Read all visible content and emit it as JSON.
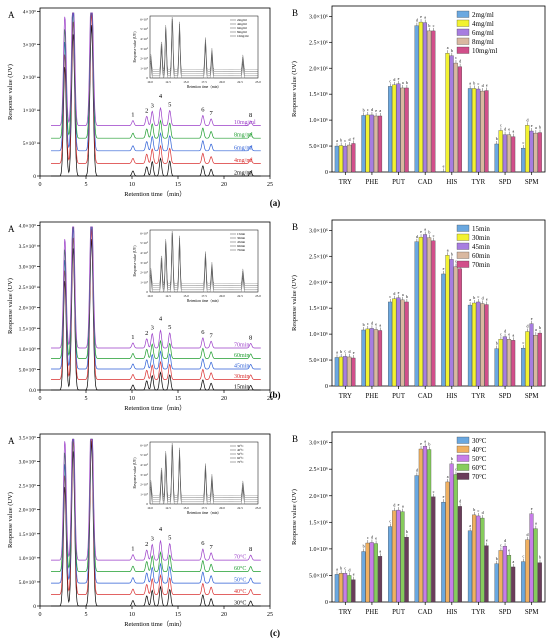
{
  "panel_rows": [
    {
      "row_label": "(a)",
      "left": {
        "panel_letter": "A",
        "ylabel": "Response value (UV)",
        "xlabel": "Retention time（min）",
        "yticks": [
          "0",
          "5×10⁵",
          "1×10⁶",
          "2×10⁶",
          "3×10⁶",
          "4×10⁶"
        ],
        "xticks": [
          "0",
          "5",
          "10",
          "15",
          "20",
          "25"
        ],
        "trace_labels": [
          "10mg/ml",
          "8mg/ml",
          "6mg/ml",
          "4mg/ml",
          "2mg/ml"
        ],
        "peak_labels": [
          "1",
          "2",
          "3",
          "4",
          "5",
          "6",
          "7",
          "8"
        ],
        "inset_legend": [
          "2mg/ml",
          "4mg/ml",
          "6mg/ml",
          "8mg/ml",
          "10mg/ml"
        ],
        "inset_ylabel": "Response value (UV)",
        "inset_xlabel": "Retention time（min）",
        "inset_yticks": [
          "0",
          "1×10⁵",
          "2×10⁵",
          "3×10⁵",
          "4×10⁵",
          "5×10⁵",
          "6×10⁵"
        ],
        "inset_xticks": [
          "10.0",
          "12.5",
          "15.0",
          "17.5",
          "20.0",
          "22.5",
          "25.0"
        ]
      },
      "right": {
        "panel_letter": "B",
        "ylabel": "Response value (UV)",
        "yticks": [
          "0",
          "5.0×10⁵",
          "1.0×10⁶",
          "1.5×10⁶",
          "2.0×10⁶",
          "2.5×10⁶",
          "3.0×10⁶"
        ],
        "legend": [
          "2mg/ml",
          "4mg/ml",
          "6mg/ml",
          "8mg/ml",
          "10mg/ml"
        ]
      }
    },
    {
      "row_label": "(b)",
      "left": {
        "panel_letter": "A",
        "ylabel": "Response value (UV)",
        "xlabel": "Retention time（min）",
        "yticks": [
          "0.0",
          "5.0×10⁵",
          "1.0×10⁶",
          "1.5×10⁶",
          "2.0×10⁶",
          "2.5×10⁶",
          "3.0×10⁶",
          "3.5×10⁶",
          "4.0×10⁶"
        ],
        "xticks": [
          "0",
          "5",
          "10",
          "15",
          "20",
          "25"
        ],
        "trace_labels": [
          "70min",
          "60min",
          "45min",
          "30min",
          "15min"
        ],
        "peak_labels": [
          "1",
          "2",
          "3",
          "4",
          "5",
          "6",
          "7",
          "8"
        ],
        "inset_legend": [
          "15min",
          "30min",
          "45min",
          "60min",
          "70min"
        ],
        "inset_ylabel": "Response value (UV)",
        "inset_xlabel": "Retention time（min）",
        "inset_yticks": [
          "0",
          "1×10⁵",
          "2×10⁵",
          "3×10⁵",
          "4×10⁵",
          "5×10⁵",
          "6×10⁵"
        ],
        "inset_xticks": [
          "10.0",
          "12.5",
          "15.0",
          "17.5",
          "20.0",
          "22.5",
          "25.0"
        ]
      },
      "right": {
        "panel_letter": "B",
        "ylabel": "Response value (UV)",
        "yticks": [
          "0",
          "5.0×10⁵",
          "1.0×10⁶",
          "1.5×10⁶",
          "2.0×10⁶",
          "2.5×10⁶",
          "3.0×10⁶"
        ],
        "legend": [
          "15min",
          "30min",
          "45min",
          "60min",
          "70min"
        ]
      }
    },
    {
      "row_label": "(c)",
      "left": {
        "panel_letter": "A",
        "ylabel": "Response value (UV)",
        "xlabel": "Retention time（min）",
        "yticks": [
          "0",
          "5.0×10⁵",
          "1.0×10⁶",
          "1.5×10⁶",
          "2.0×10⁶",
          "2.5×10⁶",
          "3.0×10⁶",
          "3.5×10⁶"
        ],
        "xticks": [
          "0",
          "5",
          "10",
          "15",
          "20",
          "25"
        ],
        "trace_labels": [
          "70°C",
          "60°C",
          "50°C",
          "40°C",
          "30°C"
        ],
        "peak_labels": [
          "1",
          "2",
          "3",
          "4",
          "5",
          "6",
          "7",
          "8"
        ],
        "inset_legend": [
          "30°C",
          "40°C",
          "50°C",
          "60°C",
          "70°C"
        ],
        "inset_ylabel": "Response value (UV)",
        "inset_xlabel": "Retention time（min）",
        "inset_yticks": [
          "0",
          "1×10⁵",
          "2×10⁵",
          "3×10⁵",
          "4×10⁵",
          "5×10⁵",
          "6×10⁵"
        ],
        "inset_xticks": [
          "10.0",
          "12.5",
          "15.0",
          "17.5",
          "20.0",
          "22.5",
          "25.0"
        ]
      },
      "right": {
        "panel_letter": "B",
        "ylabel": "Response value (UV)",
        "yticks": [
          "0",
          "5.0×10⁵",
          "1.0×10⁶",
          "1.5×10⁶",
          "2.0×10⁶",
          "2.5×10⁶",
          "3.0×10⁶"
        ],
        "legend": [
          "30°C",
          "40°C",
          "50°C",
          "60°C",
          "70°C"
        ]
      }
    }
  ],
  "colors": {
    "series": [
      "#6aa8e0",
      "#f2f230",
      "#a77de0",
      "#d9b8a0",
      "#d14f8a"
    ],
    "series_c": [
      "#6aa8e0",
      "#f0b060",
      "#c77de8",
      "#86cc5c",
      "#6a3d5a"
    ],
    "traces": [
      "#000000",
      "#d93030",
      "#2d5fd6",
      "#1f9d2f",
      "#9b3fc8"
    ]
  },
  "chart_data": [
    {
      "type": "line",
      "title": "",
      "xlabel": "Retention time（min）",
      "ylabel": "Response value (UV)",
      "xlim": [
        0,
        25
      ],
      "ylim": [
        0,
        4000000
      ],
      "series": [
        {
          "name": "2mg/ml",
          "baseline": 0
        },
        {
          "name": "4mg/ml",
          "baseline": 300000
        },
        {
          "name": "6mg/ml",
          "baseline": 600000
        },
        {
          "name": "8mg/ml",
          "baseline": 900000
        },
        {
          "name": "10mg/ml",
          "baseline": 1200000
        }
      ],
      "peaks_x": [
        10.1,
        11.6,
        12.2,
        13.1,
        14.1,
        17.7,
        18.6,
        22.9
      ]
    },
    {
      "type": "bar",
      "title": "",
      "categories": [
        "TRY",
        "PHE",
        "PUT",
        "CAD",
        "HIS",
        "TYR",
        "SPD",
        "SPM"
      ],
      "ylabel": "Response value (UV)",
      "ylim": [
        0,
        3200000
      ],
      "series": [
        {
          "name": "2mg/ml",
          "values": [
            500000,
            1090000,
            1650000,
            2820000,
            10000,
            1610000,
            540000,
            460000
          ]
        },
        {
          "name": "4mg/ml",
          "values": [
            510000,
            1100000,
            1680000,
            2890000,
            2290000,
            1610000,
            800000,
            900000
          ]
        },
        {
          "name": "6mg/ml",
          "values": [
            500000,
            1100000,
            1700000,
            2880000,
            2240000,
            1600000,
            720000,
            790000
          ]
        },
        {
          "name": "8mg/ml",
          "values": [
            520000,
            1080000,
            1620000,
            2720000,
            2100000,
            1560000,
            720000,
            750000
          ]
        },
        {
          "name": "10mg/ml",
          "values": [
            550000,
            1080000,
            1620000,
            2720000,
            2030000,
            1570000,
            680000,
            760000
          ]
        }
      ]
    },
    {
      "type": "line",
      "title": "",
      "xlabel": "Retention time（min）",
      "ylabel": "Response value (UV)",
      "xlim": [
        0,
        25
      ],
      "ylim": [
        0,
        4000000
      ],
      "series": [
        {
          "name": "15min",
          "baseline": 0
        },
        {
          "name": "30min",
          "baseline": 250000
        },
        {
          "name": "45min",
          "baseline": 500000
        },
        {
          "name": "60min",
          "baseline": 750000
        },
        {
          "name": "70min",
          "baseline": 1000000
        }
      ],
      "peaks_x": [
        10.1,
        11.6,
        12.2,
        13.1,
        14.1,
        17.7,
        18.6,
        22.9
      ]
    },
    {
      "type": "bar",
      "title": "",
      "categories": [
        "TRY",
        "PHE",
        "PUT",
        "CAD",
        "HIS",
        "TYR",
        "SPD",
        "SPM"
      ],
      "ylabel": "Response value (UV)",
      "ylim": [
        0,
        3200000
      ],
      "series": [
        {
          "name": "15min",
          "values": [
            550000,
            1080000,
            1620000,
            2780000,
            2160000,
            1560000,
            720000,
            730000
          ]
        },
        {
          "name": "30min",
          "values": [
            560000,
            1100000,
            1680000,
            2870000,
            2520000,
            1600000,
            900000,
            1050000
          ]
        },
        {
          "name": "45min",
          "values": [
            570000,
            1110000,
            1700000,
            2920000,
            2440000,
            1620000,
            950000,
            1200000
          ]
        },
        {
          "name": "60min",
          "values": [
            560000,
            1090000,
            1660000,
            2860000,
            2300000,
            1590000,
            900000,
            980000
          ]
        },
        {
          "name": "70min",
          "values": [
            540000,
            1070000,
            1620000,
            2800000,
            2260000,
            1570000,
            880000,
            1020000
          ]
        }
      ]
    },
    {
      "type": "line",
      "title": "",
      "xlabel": "Retention time（min）",
      "ylabel": "Response value (UV)",
      "xlim": [
        0,
        25
      ],
      "ylim": [
        0,
        3750000
      ],
      "series": [
        {
          "name": "30°C",
          "baseline": 0
        },
        {
          "name": "40°C",
          "baseline": 250000
        },
        {
          "name": "50°C",
          "baseline": 500000
        },
        {
          "name": "60°C",
          "baseline": 750000
        },
        {
          "name": "70°C",
          "baseline": 1000000
        }
      ],
      "peaks_x": [
        10.1,
        11.6,
        12.2,
        13.1,
        14.1,
        17.7,
        18.6,
        22.9
      ]
    },
    {
      "type": "bar",
      "title": "",
      "categories": [
        "TRY",
        "PHE",
        "PUT",
        "CAD",
        "HIS",
        "TYR",
        "SPD",
        "SPM"
      ],
      "ylabel": "Response value (UV)",
      "ylim": [
        0,
        3200000
      ],
      "series": [
        {
          "name": "30°C",
          "values": [
            520000,
            950000,
            1420000,
            2380000,
            1880000,
            1340000,
            720000,
            760000
          ]
        },
        {
          "name": "40°C",
          "values": [
            540000,
            1110000,
            1720000,
            2880000,
            2260000,
            1640000,
            970000,
            1170000
          ]
        },
        {
          "name": "50°C",
          "values": [
            540000,
            1120000,
            1730000,
            2930000,
            2600000,
            1620000,
            1050000,
            1660000
          ]
        },
        {
          "name": "60°C",
          "values": [
            500000,
            1100000,
            1700000,
            2870000,
            2400000,
            1580000,
            880000,
            1380000
          ]
        },
        {
          "name": "70°C",
          "values": [
            420000,
            860000,
            1220000,
            1980000,
            1800000,
            1060000,
            660000,
            740000
          ]
        }
      ]
    }
  ]
}
